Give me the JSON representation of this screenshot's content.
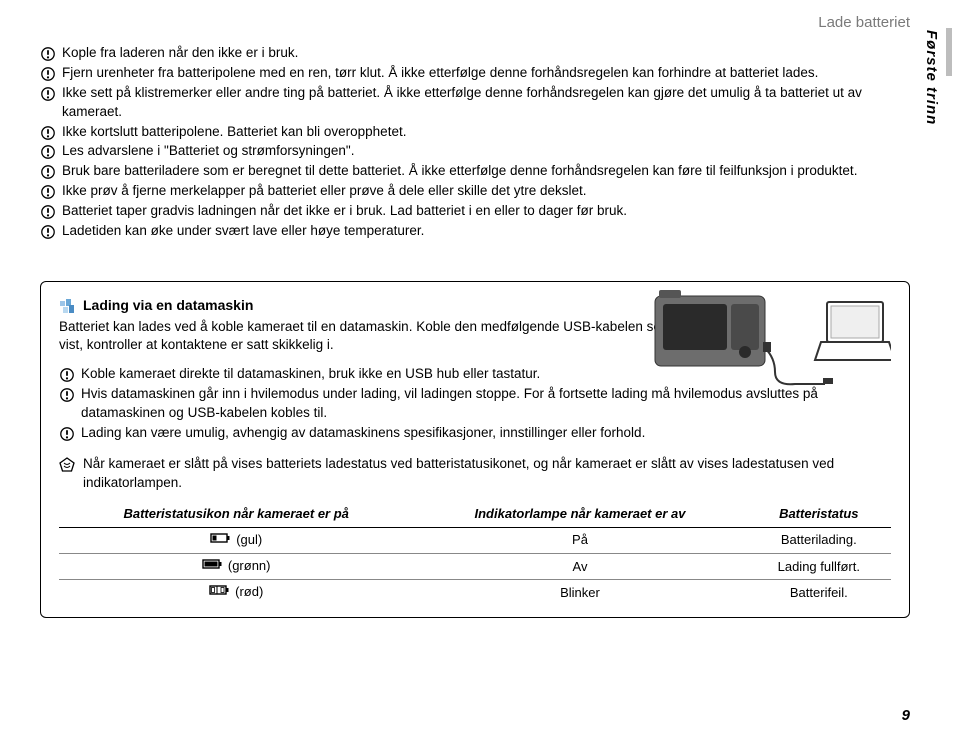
{
  "header": {
    "title": "Lade batteriet"
  },
  "sideTab": "Første trinn",
  "warnings": [
    "Kople fra laderen når den ikke er i bruk.",
    "Fjern urenheter fra batteripolene med en ren, tørr klut. Å ikke etterfølge denne forhåndsregelen kan forhindre at batteriet lades.",
    "Ikke sett på klistremerker eller andre ting på batteriet. Å ikke etterfølge denne forhåndsregelen kan gjøre det umulig å ta batteriet ut av kameraet.",
    "Ikke kortslutt batteripolene. Batteriet kan bli overopphetet.",
    "Les advarslene i \"Batteriet og strømforsyningen\".",
    "Bruk bare batteriladere som er beregnet til dette batteriet. Å ikke etterfølge denne forhåndsregelen kan føre til feilfunksjon i produktet.",
    "Ikke prøv å fjerne merkelapper på batteriet eller prøve å dele eller skille det ytre dekslet.",
    "Batteriet taper gradvis ladningen når det ikke er i bruk. Lad batteriet i en eller to dager før bruk.",
    "Ladetiden kan øke under svært lave eller høye temperaturer."
  ],
  "box": {
    "title": "Lading via en datamaskin",
    "intro": "Batteriet kan lades ved å koble kameraet til en datamaskin. Koble den medfølgende USB-kabelen som vist, kontroller at kontaktene er satt skikkelig i.",
    "warnings": [
      "Koble kameraet direkte til datamaskinen, bruk ikke en USB hub eller tastatur.",
      "Hvis datamaskinen går inn i hvilemodus under lading, vil ladingen stoppe. For å fortsette lading må hvilemodus avsluttes på datamaskinen og USB-kabelen kobles til.",
      "Lading kan være umulig, avhengig av datamaskinens spesifikasjoner, innstillinger eller forhold."
    ],
    "note": "Når kameraet er slått på vises batteriets ladestatus ved batteristatusikonet, og når kameraet er slått av vises ladestatusen ved indikatorlampen.",
    "table": {
      "headers": [
        "Batteristatusikon når kameraet er på",
        "Indikatorlampe når kameraet er av",
        "Batteristatus"
      ],
      "rows": [
        {
          "color": "(gul)",
          "lamp": "På",
          "status": "Batterilading."
        },
        {
          "color": "(grønn)",
          "lamp": "Av",
          "status": "Lading fullført."
        },
        {
          "color": "(rød)",
          "lamp": "Blinker",
          "status": "Batterifeil."
        }
      ]
    }
  },
  "pageNumber": "9",
  "colors": {
    "muted": "#7a7a7a",
    "sidebar": "#bdbdbd",
    "cameraFill": "#6d6d6d",
    "cameraStroke": "#333333"
  }
}
